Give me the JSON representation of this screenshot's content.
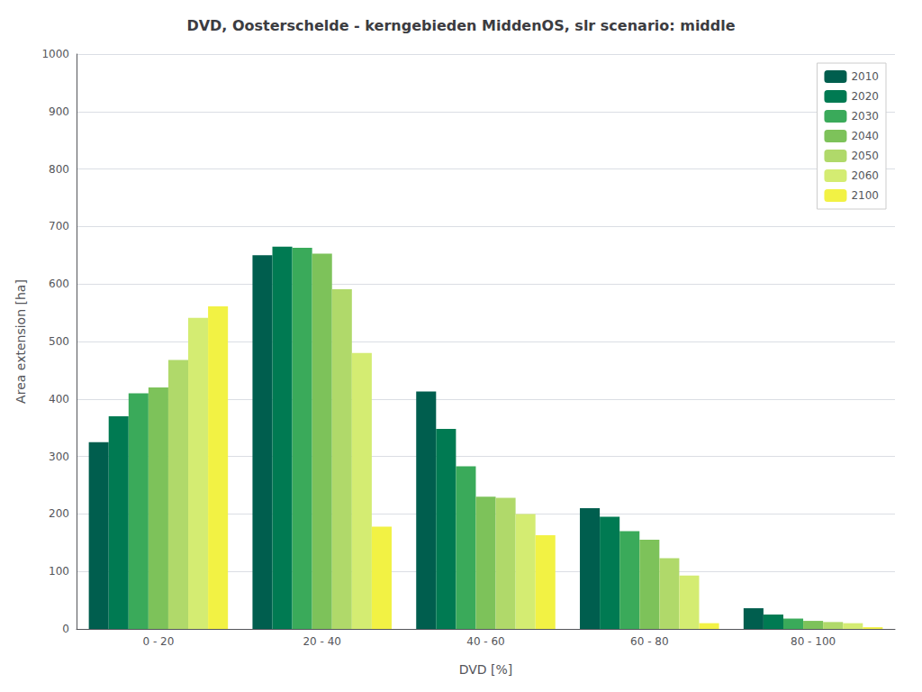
{
  "chart_data": {
    "type": "bar",
    "title": "DVD, Oosterschelde - kerngebieden MiddenOS, slr scenario: middle",
    "xlabel": "DVD [%]",
    "ylabel": "Area extension [ha]",
    "categories": [
      "0 - 20",
      "20 - 40",
      "40 - 60",
      "60 - 80",
      "80 - 100"
    ],
    "series": [
      {
        "name": "2010",
        "color": "#005E4E",
        "values": [
          325,
          650,
          413,
          210,
          36
        ]
      },
      {
        "name": "2020",
        "color": "#007A52",
        "values": [
          370,
          665,
          348,
          195,
          25
        ]
      },
      {
        "name": "2030",
        "color": "#3AAA5A",
        "values": [
          410,
          663,
          283,
          170,
          18
        ]
      },
      {
        "name": "2040",
        "color": "#7DC25A",
        "values": [
          420,
          653,
          230,
          155,
          14
        ]
      },
      {
        "name": "2050",
        "color": "#B0D96A",
        "values": [
          468,
          591,
          228,
          123,
          12
        ]
      },
      {
        "name": "2060",
        "color": "#D4EC72",
        "values": [
          541,
          480,
          200,
          93,
          10
        ]
      },
      {
        "name": "2100",
        "color": "#F2F244",
        "values": [
          561,
          178,
          163,
          10,
          3
        ]
      }
    ],
    "ylim": [
      0,
      1000
    ],
    "yticks": [
      0,
      100,
      200,
      300,
      400,
      500,
      600,
      700,
      800,
      900,
      1000
    ],
    "grid": true,
    "legend": "upper right"
  }
}
